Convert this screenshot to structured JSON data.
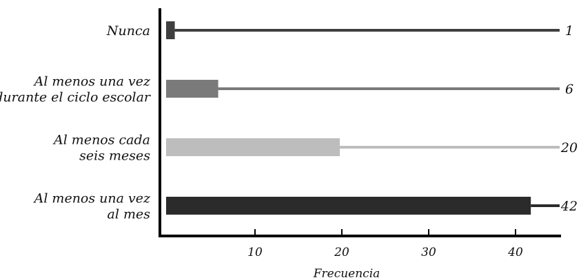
{
  "chart_data": {
    "type": "bar",
    "orientation": "horizontal",
    "xlabel": "Frecuencia",
    "ylabel": "",
    "title": "",
    "xlim": [
      0,
      46
    ],
    "xticks": [
      10,
      20,
      30,
      40
    ],
    "grid": false,
    "categories": [
      [
        "Nunca"
      ],
      [
        "Al menos una vez",
        "durante el ciclo escolar"
      ],
      [
        "Al menos cada",
        "seis meses"
      ],
      [
        "Al menos una vez",
        "al mes"
      ]
    ],
    "values": [
      1,
      6,
      20,
      42
    ],
    "value_labels": [
      "1",
      "6",
      "20",
      "42"
    ],
    "colors": [
      "#3f3f3f",
      "#7a7a7a",
      "#bdbdbd",
      "#2b2b2b"
    ],
    "axis_color": "#000000"
  }
}
